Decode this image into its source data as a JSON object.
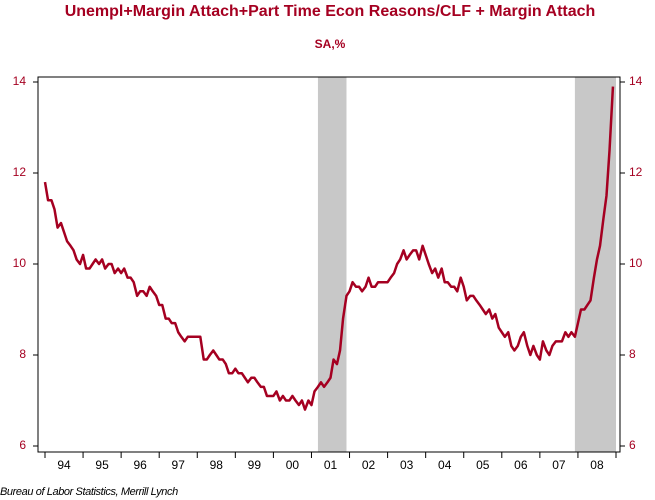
{
  "chart_data": {
    "type": "line",
    "title": "Unempl+Margin Attach+Part Time Econ Reasons/CLF + Margin Attach",
    "subtitle": "SA,%",
    "source": "Bureau of Labor Statistics, Merrill Lynch",
    "x": [
      1994,
      1994.08,
      1994.17,
      1994.25,
      1994.33,
      1994.42,
      1994.5,
      1994.58,
      1994.67,
      1994.75,
      1994.83,
      1994.92,
      1995,
      1995.08,
      1995.17,
      1995.25,
      1995.33,
      1995.42,
      1995.5,
      1995.58,
      1995.67,
      1995.75,
      1995.83,
      1995.92,
      1996,
      1996.08,
      1996.17,
      1996.25,
      1996.33,
      1996.42,
      1996.5,
      1996.58,
      1996.67,
      1996.75,
      1996.83,
      1996.92,
      1997,
      1997.08,
      1997.17,
      1997.25,
      1997.33,
      1997.42,
      1997.5,
      1997.58,
      1997.67,
      1997.75,
      1997.83,
      1997.92,
      1998,
      1998.08,
      1998.17,
      1998.25,
      1998.33,
      1998.42,
      1998.5,
      1998.58,
      1998.67,
      1998.75,
      1998.83,
      1998.92,
      1999,
      1999.08,
      1999.17,
      1999.25,
      1999.33,
      1999.42,
      1999.5,
      1999.58,
      1999.67,
      1999.75,
      1999.83,
      1999.92,
      2000,
      2000.08,
      2000.17,
      2000.25,
      2000.33,
      2000.42,
      2000.5,
      2000.58,
      2000.67,
      2000.75,
      2000.83,
      2000.92,
      2001,
      2001.08,
      2001.17,
      2001.25,
      2001.33,
      2001.42,
      2001.5,
      2001.58,
      2001.67,
      2001.75,
      2001.83,
      2001.92,
      2002,
      2002.08,
      2002.17,
      2002.25,
      2002.33,
      2002.42,
      2002.5,
      2002.58,
      2002.67,
      2002.75,
      2002.83,
      2002.92,
      2003,
      2003.08,
      2003.17,
      2003.25,
      2003.33,
      2003.42,
      2003.5,
      2003.58,
      2003.67,
      2003.75,
      2003.83,
      2003.92,
      2004,
      2004.08,
      2004.17,
      2004.25,
      2004.33,
      2004.42,
      2004.5,
      2004.58,
      2004.67,
      2004.75,
      2004.83,
      2004.92,
      2005,
      2005.08,
      2005.17,
      2005.25,
      2005.33,
      2005.42,
      2005.5,
      2005.58,
      2005.67,
      2005.75,
      2005.83,
      2005.92,
      2006,
      2006.08,
      2006.17,
      2006.25,
      2006.33,
      2006.42,
      2006.5,
      2006.58,
      2006.67,
      2006.75,
      2006.83,
      2006.92,
      2007,
      2007.08,
      2007.17,
      2007.25,
      2007.33,
      2007.42,
      2007.5,
      2007.58,
      2007.67,
      2007.75,
      2007.83,
      2007.92,
      2008,
      2008.08,
      2008.17,
      2008.25,
      2008.33,
      2008.42,
      2008.5,
      2008.58,
      2008.67,
      2008.75,
      2008.83,
      2008.92
    ],
    "series": [
      {
        "color": "#a50021",
        "values": [
          11.8,
          11.4,
          11.4,
          11.2,
          10.8,
          10.9,
          10.7,
          10.5,
          10.4,
          10.3,
          10.1,
          10.0,
          10.2,
          9.9,
          9.9,
          10.0,
          10.1,
          10.0,
          10.1,
          9.9,
          10.0,
          10.0,
          9.8,
          9.9,
          9.8,
          9.9,
          9.7,
          9.7,
          9.6,
          9.3,
          9.4,
          9.4,
          9.3,
          9.5,
          9.4,
          9.3,
          9.1,
          9.1,
          8.8,
          8.8,
          8.7,
          8.7,
          8.5,
          8.4,
          8.3,
          8.4,
          8.4,
          8.4,
          8.4,
          8.4,
          7.9,
          7.9,
          8.0,
          8.1,
          8.0,
          7.9,
          7.9,
          7.8,
          7.6,
          7.6,
          7.7,
          7.6,
          7.6,
          7.5,
          7.4,
          7.5,
          7.5,
          7.4,
          7.3,
          7.3,
          7.1,
          7.1,
          7.1,
          7.2,
          7.0,
          7.1,
          7.0,
          7.0,
          7.1,
          7.0,
          6.9,
          7.0,
          6.8,
          7.0,
          6.9,
          7.2,
          7.3,
          7.4,
          7.3,
          7.4,
          7.5,
          7.9,
          7.8,
          8.1,
          8.8,
          9.3,
          9.4,
          9.6,
          9.5,
          9.5,
          9.4,
          9.5,
          9.7,
          9.5,
          9.5,
          9.6,
          9.6,
          9.6,
          9.6,
          9.7,
          9.8,
          10.0,
          10.1,
          10.3,
          10.1,
          10.2,
          10.3,
          10.3,
          10.1,
          10.4,
          10.2,
          10.0,
          9.8,
          9.9,
          9.7,
          9.9,
          9.6,
          9.6,
          9.5,
          9.5,
          9.4,
          9.7,
          9.5,
          9.2,
          9.3,
          9.3,
          9.2,
          9.1,
          9.0,
          8.9,
          9.0,
          8.8,
          8.9,
          8.6,
          8.5,
          8.4,
          8.5,
          8.2,
          8.1,
          8.2,
          8.4,
          8.5,
          8.2,
          8.0,
          8.2,
          8.0,
          7.9,
          8.3,
          8.1,
          8.0,
          8.2,
          8.3,
          8.3,
          8.3,
          8.5,
          8.4,
          8.5,
          8.4,
          8.7,
          9.0,
          9.0,
          9.1,
          9.2,
          9.7,
          10.1,
          10.4,
          11.0,
          11.5,
          12.5,
          13.9
        ]
      }
    ],
    "shaded_periods": [
      [
        2001.17,
        2001.92
      ],
      [
        2007.92,
        2009
      ]
    ],
    "shade_color": "#c8c8c8",
    "xlim": [
      1994,
      2009
    ],
    "xticks": [
      1994,
      1995,
      1996,
      1997,
      1998,
      1999,
      2000,
      2001,
      2002,
      2003,
      2004,
      2005,
      2006,
      2007,
      2008,
      2009
    ],
    "year_labels": [
      "94",
      "95",
      "96",
      "97",
      "98",
      "99",
      "00",
      "01",
      "02",
      "03",
      "04",
      "05",
      "06",
      "07",
      "08"
    ],
    "ylim": [
      6,
      14
    ],
    "yticks": [
      6,
      8,
      10,
      12,
      14
    ]
  }
}
